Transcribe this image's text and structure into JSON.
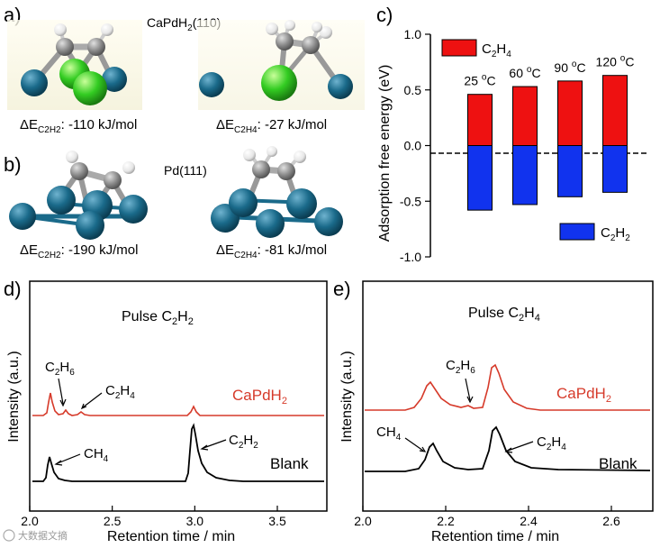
{
  "panels": {
    "a": {
      "letter": "a)",
      "surface": "CaPdH",
      "surface_sub": "2",
      "surface_tail": "(110)",
      "c2h2": {
        "prefix": "ΔE",
        "sub": "C2H2",
        "value": ": -110 kJ/mol"
      },
      "c2h4": {
        "prefix": "ΔE",
        "sub": "C2H4",
        "value": ": -27 kJ/mol"
      }
    },
    "b": {
      "letter": "b)",
      "surface": "Pd(111)",
      "c2h2": {
        "prefix": "ΔE",
        "sub": "C2H2",
        "value": ": -190 kJ/mol"
      },
      "c2h4": {
        "prefix": "ΔE",
        "sub": "C2H4",
        "value": ": -81 kJ/mol"
      }
    },
    "c": {
      "letter": "c)"
    },
    "d": {
      "letter": "d)"
    },
    "e": {
      "letter": "e)"
    }
  },
  "colors": {
    "c2h4_bar": "#ee1111",
    "c2h2_bar": "#1133ee",
    "sample_trace": "#d63a2a",
    "blank_trace": "#000000",
    "pd_atom": "#1a6a8a",
    "ca_atom": "#33cc22",
    "carbon": "#8a8a8a",
    "hydrogen": "#f0f0f0"
  },
  "chart_data": [
    {
      "type": "bar",
      "panel": "c",
      "ylabel": "Adsorption free energy (eV)",
      "ylim": [
        -1.0,
        1.0
      ],
      "yticks": [
        "1.0",
        "0.5",
        "0.0",
        "-0.5",
        "-1.0"
      ],
      "categories": [
        "25",
        "60",
        "90",
        "120"
      ],
      "category_unit": "°C",
      "series": [
        {
          "name": "C2H4",
          "name_main": "C",
          "name_sub1": "2",
          "name_mid": "H",
          "name_sub2": "4",
          "values": [
            0.46,
            0.53,
            0.58,
            0.63
          ]
        },
        {
          "name": "C2H2",
          "name_main": "C",
          "name_sub1": "2",
          "name_mid": "H",
          "name_sub2": "2",
          "values": [
            -0.58,
            -0.53,
            -0.46,
            -0.42
          ]
        }
      ],
      "legend": "top-left (C2H4), bottom-right (C2H2)"
    },
    {
      "type": "line",
      "panel": "d",
      "title": "Pulse C2H2",
      "title_main": "Pulse C",
      "title_sub1": "2",
      "title_mid": "H",
      "title_sub2": "2",
      "xlabel": "Retention time / min",
      "ylabel": "Intensity (a.u.)",
      "xlim": [
        2.0,
        3.8
      ],
      "xticks": [
        "2.0",
        "2.5",
        "3.0",
        "3.5"
      ],
      "series": [
        {
          "name": "CaPdH2",
          "name_main": "CaPdH",
          "name_sub": "2"
        },
        {
          "name": "Blank"
        }
      ],
      "annotations": {
        "c2h6": {
          "main": "C",
          "s1": "2",
          "mid": "H",
          "s2": "6"
        },
        "c2h4": {
          "main": "C",
          "s1": "2",
          "mid": "H",
          "s2": "4"
        },
        "ch4": {
          "main": "CH",
          "s1": "4"
        },
        "c2h2": {
          "main": "C",
          "s1": "2",
          "mid": "H",
          "s2": "2"
        }
      }
    },
    {
      "type": "line",
      "panel": "e",
      "title": "Pulse C2H4",
      "title_main": "Pulse C",
      "title_sub1": "2",
      "title_mid": "H",
      "title_sub2": "4",
      "xlabel": "Retention time / min",
      "ylabel": "Intensity (a.u.)",
      "xlim": [
        2.0,
        2.7
      ],
      "xticks": [
        "2.0",
        "2.2",
        "2.4",
        "2.6"
      ],
      "series": [
        {
          "name": "CaPdH2",
          "name_main": "CaPdH",
          "name_sub": "2"
        },
        {
          "name": "Blank"
        }
      ],
      "annotations": {
        "c2h6": {
          "main": "C",
          "s1": "2",
          "mid": "H",
          "s2": "6"
        },
        "ch4": {
          "main": "CH",
          "s1": "4"
        },
        "c2h4": {
          "main": "C",
          "s1": "2",
          "mid": "H",
          "s2": "4"
        }
      }
    }
  ],
  "watermark": "大数据文摘"
}
